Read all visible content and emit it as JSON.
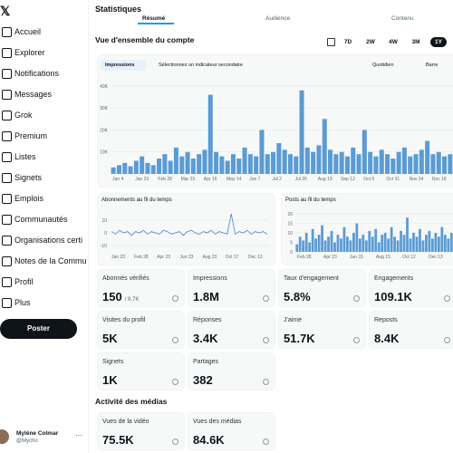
{
  "sidebar": {
    "nav": [
      "Accueil",
      "Explorer",
      "Notifications",
      "Messages",
      "Grok",
      "Premium",
      "Listes",
      "Signets",
      "Emplois",
      "Communautés",
      "Organisations certi",
      "Notes de la Commu",
      "Profil",
      "Plus"
    ],
    "post_button": "Poster",
    "user": {
      "name": "Mylène Colmar",
      "handle": "@Mycho"
    }
  },
  "header": {
    "title": "Statistiques",
    "tabs": [
      "Résumé",
      "Audience",
      "Contenu"
    ]
  },
  "overview": {
    "title": "Vue d'ensemble du compte",
    "ranges": [
      "7D",
      "2W",
      "4W",
      "3M",
      "1Y"
    ],
    "selected_range": "1Y",
    "controls": [
      "Impressions",
      "Sélectionnez un indicateur secondaire",
      "Quotidien",
      "Barre"
    ],
    "chart": {
      "type": "bar",
      "color": "#5b9bd5",
      "ylim": [
        0,
        42000
      ],
      "yticks": [
        {
          "value": 10000,
          "label": "10K"
        },
        {
          "value": 20000,
          "label": "20K"
        },
        {
          "value": 30000,
          "label": "30K"
        },
        {
          "value": 40000,
          "label": "40K"
        }
      ],
      "xlabels": [
        "Jan 4",
        "Jan 23",
        "Feb 28",
        "Mar 23",
        "Apr 16",
        "May 14",
        "Jun 7",
        "Jul 2",
        "Jul 26",
        "Aug 19",
        "Sep 12",
        "Oct 6",
        "Oct 31",
        "Nov 24",
        "Dec 18"
      ],
      "values": [
        3000,
        4000,
        5000,
        3500,
        6000,
        8000,
        5000,
        4000,
        7000,
        9000,
        6000,
        12000,
        8000,
        10000,
        7000,
        9000,
        11000,
        36000,
        10000,
        8000,
        6000,
        9000,
        7000,
        12000,
        9000,
        8000,
        20000,
        9000,
        10000,
        14000,
        11000,
        9000,
        8000,
        38000,
        12000,
        10000,
        13000,
        25000,
        11000,
        9000,
        10000,
        8000,
        12000,
        9000,
        20000,
        10000,
        8000,
        11000,
        9000,
        7000,
        10000,
        12000,
        8000,
        9000,
        11000,
        15000,
        9000,
        10000,
        8000,
        9000
      ]
    }
  },
  "small_charts": [
    {
      "title": "Abonnements au fil du temps",
      "type": "line",
      "color": "#4a7fd6",
      "ylim": [
        -15,
        15
      ],
      "yticks": [
        -10,
        0,
        10
      ],
      "xlabels": [
        "Jan 23",
        "Feb 28",
        "Apr 23",
        "Jun 23",
        "Aug 23",
        "Oct 17",
        "Dec 13"
      ],
      "values": [
        1,
        -1,
        2,
        0,
        1,
        -2,
        1,
        0,
        2,
        -1,
        1,
        0,
        -1,
        2,
        1,
        -1,
        0,
        1,
        -2,
        1,
        2,
        0,
        -1,
        1,
        0,
        2,
        -1,
        1,
        0,
        -1,
        15,
        -1,
        1,
        0,
        2,
        -1,
        1,
        0,
        1,
        -1
      ]
    },
    {
      "title": "Posts au fil du temps",
      "type": "bar",
      "color": "#5b9bd5",
      "ylim": [
        0,
        20
      ],
      "yticks": [
        0,
        5,
        10,
        15,
        20
      ],
      "xlabels": [
        "Feb 28",
        "Apr 23",
        "Jun 15",
        "Aug 15",
        "Oct 12",
        "Dec 13"
      ],
      "values": [
        4,
        8,
        6,
        10,
        5,
        12,
        7,
        9,
        14,
        6,
        8,
        11,
        5,
        9,
        7,
        13,
        8,
        6,
        10,
        15,
        7,
        9,
        6,
        11,
        8,
        12,
        5,
        9,
        10,
        7,
        13,
        8,
        6,
        11,
        9,
        18,
        7,
        10,
        8,
        12,
        6,
        9,
        11,
        7,
        10,
        8,
        13,
        9,
        7,
        10
      ]
    }
  ],
  "metrics": [
    {
      "label": "Abonnés vérifiés",
      "value": "150",
      "sub": "/ 9.7K"
    },
    {
      "label": "Impressions",
      "value": "1.8M"
    },
    {
      "label": "Taux d'engagement",
      "value": "5.8%"
    },
    {
      "label": "Engagements",
      "value": "109.1K"
    },
    {
      "label": "Visites du profil",
      "value": "5K"
    },
    {
      "label": "Réponses",
      "value": "3.4K"
    },
    {
      "label": "J'aime",
      "value": "51.7K"
    },
    {
      "label": "Reposts",
      "value": "8.4K"
    },
    {
      "label": "Signets",
      "value": "1K"
    },
    {
      "label": "Partages",
      "value": "382"
    }
  ],
  "media": {
    "title": "Activité des médias",
    "metrics": [
      {
        "label": "Vues de la vidéo",
        "value": "75.5K"
      },
      {
        "label": "Vues des médias",
        "value": "84.6K"
      }
    ]
  }
}
